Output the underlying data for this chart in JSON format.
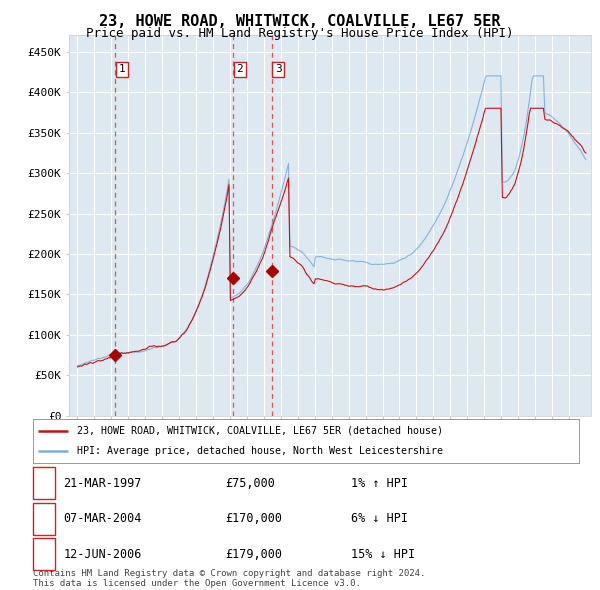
{
  "title": "23, HOWE ROAD, WHITWICK, COALVILLE, LE67 5ER",
  "subtitle": "Price paid vs. HM Land Registry's House Price Index (HPI)",
  "ylabel_ticks": [
    "£0",
    "£50K",
    "£100K",
    "£150K",
    "£200K",
    "£250K",
    "£300K",
    "£350K",
    "£400K",
    "£450K"
  ],
  "ytick_values": [
    0,
    50000,
    100000,
    150000,
    200000,
    250000,
    300000,
    350000,
    400000,
    450000
  ],
  "ylim": [
    0,
    470000
  ],
  "xlim_start": 1994.5,
  "xlim_end": 2025.3,
  "sale_dates": [
    1997.22,
    2004.18,
    2006.45
  ],
  "sale_prices": [
    75000,
    170000,
    179000
  ],
  "sale_labels": [
    "1",
    "2",
    "3"
  ],
  "hpi_line_color": "#7aaddd",
  "price_line_color": "#cc1111",
  "sale_dot_color": "#aa0000",
  "dashed_line_color": "#dd4444",
  "background_color": "#dde8f0",
  "legend_entries": [
    "23, HOWE ROAD, WHITWICK, COALVILLE, LE67 5ER (detached house)",
    "HPI: Average price, detached house, North West Leicestershire"
  ],
  "table_rows": [
    [
      "1",
      "21-MAR-1997",
      "£75,000",
      "1% ↑ HPI"
    ],
    [
      "2",
      "07-MAR-2004",
      "£170,000",
      "6% ↓ HPI"
    ],
    [
      "3",
      "12-JUN-2006",
      "£179,000",
      "15% ↓ HPI"
    ]
  ],
  "footnote": "Contains HM Land Registry data © Crown copyright and database right 2024.\nThis data is licensed under the Open Government Licence v3.0.",
  "grid_color": "#ffffff",
  "title_fontsize": 11,
  "subtitle_fontsize": 9,
  "tick_fontsize": 8
}
